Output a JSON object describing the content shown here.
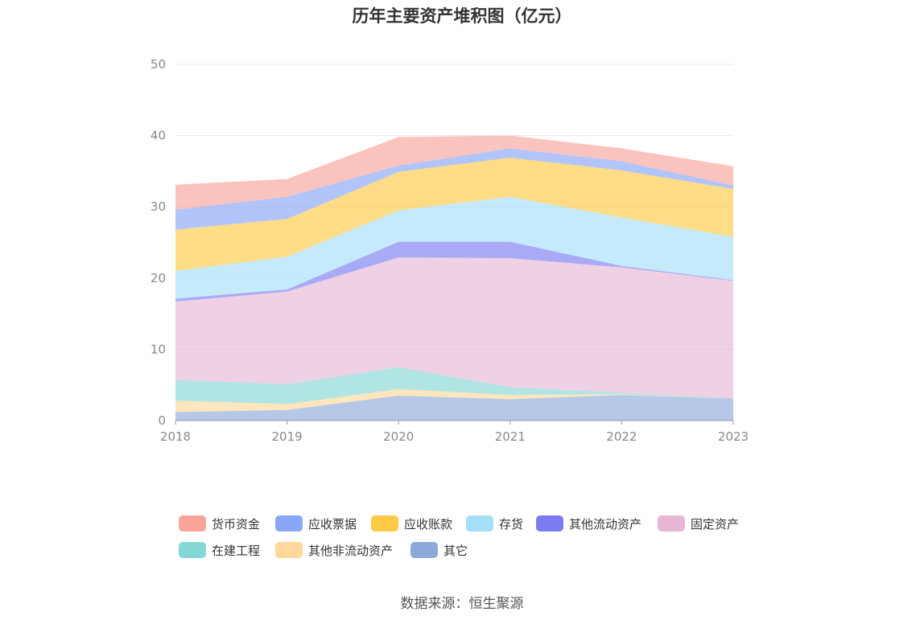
{
  "title": "历年主要资产堆积图（亿元）",
  "source": "数据来源：恒生聚源",
  "chart_data": {
    "type": "area",
    "stacked": true,
    "x": [
      "2018",
      "2019",
      "2020",
      "2021",
      "2022",
      "2023"
    ],
    "ylim": [
      0,
      50
    ],
    "yticks": [
      "0",
      "10",
      "20",
      "30",
      "40",
      "50"
    ],
    "grid": true,
    "legend_position": "bottom",
    "series": [
      {
        "name": "其它",
        "color": "#8eaadb",
        "values": [
          1.2,
          1.5,
          3.5,
          3.0,
          3.6,
          3.1
        ]
      },
      {
        "name": "其他非流动资产",
        "color": "#ffd89a",
        "values": [
          1.6,
          0.8,
          0.9,
          0.6,
          0.1,
          0.0
        ]
      },
      {
        "name": "在建工程",
        "color": "#85d7d6",
        "values": [
          2.9,
          2.8,
          3.1,
          1.1,
          0.2,
          0.0
        ]
      },
      {
        "name": "固定资产",
        "color": "#e8b7d6",
        "values": [
          11.0,
          13.0,
          15.4,
          18.1,
          17.6,
          16.5
        ]
      },
      {
        "name": "其他流动资产",
        "color": "#7b7cf0",
        "values": [
          0.4,
          0.3,
          2.2,
          2.3,
          0.2,
          0.1
        ]
      },
      {
        "name": "存货",
        "color": "#a6dffa",
        "values": [
          3.9,
          4.6,
          4.4,
          6.3,
          6.8,
          6.1
        ]
      },
      {
        "name": "应收账款",
        "color": "#ffca45",
        "values": [
          5.8,
          5.3,
          5.4,
          5.5,
          6.6,
          6.7
        ]
      },
      {
        "name": "应收票据",
        "color": "#89a6f8",
        "values": [
          2.8,
          3.1,
          0.9,
          1.3,
          1.3,
          0.5
        ]
      },
      {
        "name": "货币资金",
        "color": "#f9a39b",
        "values": [
          3.5,
          2.5,
          4.0,
          1.8,
          1.8,
          2.7
        ]
      }
    ]
  },
  "legend": [
    {
      "name": "货币资金",
      "color": "#f9a39b"
    },
    {
      "name": "应收票据",
      "color": "#89a6f8"
    },
    {
      "name": "应收账款",
      "color": "#ffca45"
    },
    {
      "name": "存货",
      "color": "#a6dffa"
    },
    {
      "name": "其他流动资产",
      "color": "#7b7cf0"
    },
    {
      "name": "固定资产",
      "color": "#e8b7d6"
    },
    {
      "name": "在建工程",
      "color": "#85d7d6"
    },
    {
      "name": "其他非流动资产",
      "color": "#ffd89a"
    },
    {
      "name": "其它",
      "color": "#8eaadb"
    }
  ]
}
